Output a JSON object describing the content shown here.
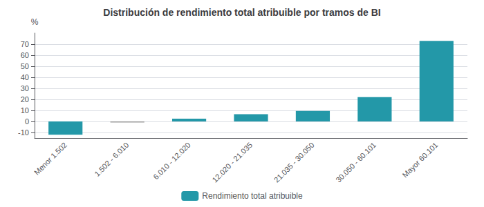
{
  "chart_data": {
    "type": "bar",
    "title": "Distribución de rendimiento total atribuible por tramos de BI",
    "categories": [
      "Menor 1.502",
      "1.502 - 6.010",
      "6.010 - 12.020",
      "12.020 - 21.035",
      "21.035 - 30.050",
      "30.050 - 60.101",
      "Mayor 60.101"
    ],
    "series": [
      {
        "name": "Rendimiento total atribuible",
        "color": "#2398A8",
        "colors": [
          "#2398A8",
          "#999999",
          "#2398A8",
          "#2398A8",
          "#2398A8",
          "#2398A8",
          "#2398A8"
        ],
        "values": [
          -12,
          -1,
          2.5,
          6.5,
          9.5,
          22,
          73
        ]
      }
    ],
    "ylabel": "%",
    "ylim": [
      -15,
      80
    ],
    "yticks": [
      -10,
      0,
      10,
      20,
      30,
      40,
      50,
      60,
      70
    ],
    "grid": true,
    "legend": "bottom"
  }
}
